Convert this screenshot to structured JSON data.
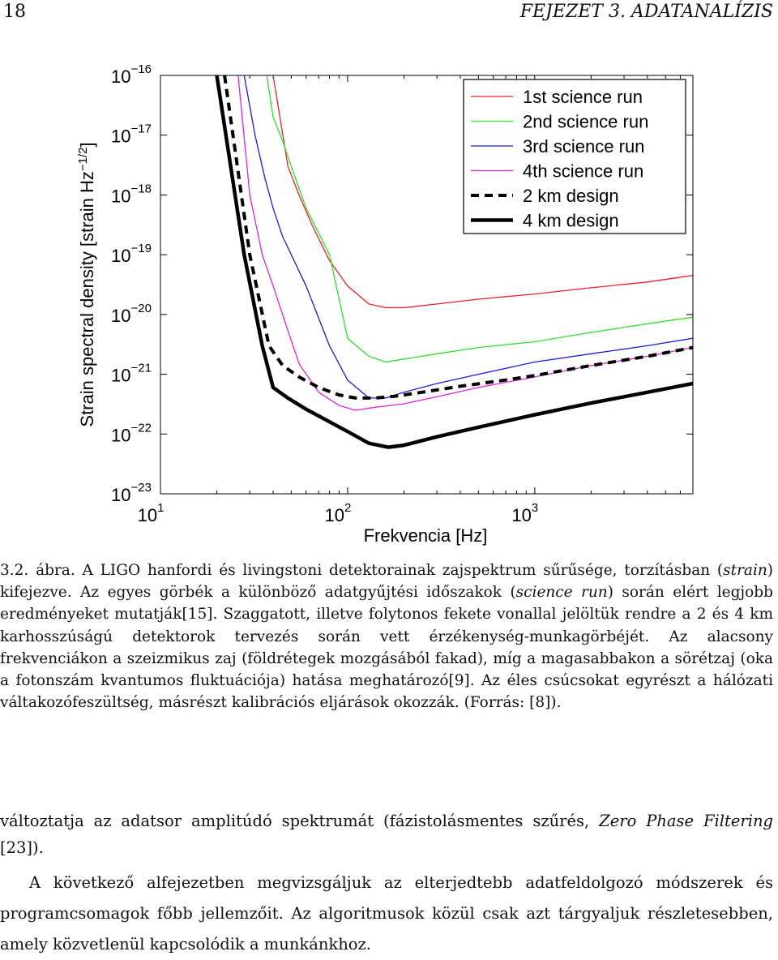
{
  "header": {
    "page_number": "18",
    "chapter": "FEJEZET 3.  ADATANALÍZIS"
  },
  "figure": {
    "ylabel": "Strain spectral density [strain Hz",
    "ylabel_exp": "−1/2",
    "ylabel_end": "]",
    "xlabel": "Frekvencia [Hz]",
    "legend": [
      {
        "label": "1st science run",
        "color": "#e8202a",
        "style": "solid"
      },
      {
        "label": "2nd science run",
        "color": "#2be02b",
        "style": "solid"
      },
      {
        "label": "3rd science run",
        "color": "#1a1adf",
        "style": "solid"
      },
      {
        "label": "4th science run",
        "color": "#e020e0",
        "style": "solid"
      },
      {
        "label": "2 km design",
        "color": "#000000",
        "style": "dashed"
      },
      {
        "label": "4 km design",
        "color": "#000000",
        "style": "solid-thick"
      }
    ]
  },
  "chart_data": {
    "type": "line",
    "xscale": "log",
    "yscale": "log",
    "xlim": [
      10,
      7000
    ],
    "ylim": [
      1e-23,
      1e-16
    ],
    "xticks": [
      {
        "value": 10,
        "base": "10",
        "exp": "1"
      },
      {
        "value": 100,
        "base": "10",
        "exp": "2"
      },
      {
        "value": 1000,
        "base": "10",
        "exp": "3"
      }
    ],
    "yticks": [
      {
        "value": 1e-16,
        "base": "10",
        "exp": "−16"
      },
      {
        "value": 1e-17,
        "base": "10",
        "exp": "−17"
      },
      {
        "value": 1e-18,
        "base": "10",
        "exp": "−18"
      },
      {
        "value": 1e-19,
        "base": "10",
        "exp": "−19"
      },
      {
        "value": 1e-20,
        "base": "10",
        "exp": "−20"
      },
      {
        "value": 1e-21,
        "base": "10",
        "exp": "−21"
      },
      {
        "value": 1e-22,
        "base": "10",
        "exp": "−22"
      },
      {
        "value": 1e-23,
        "base": "10",
        "exp": "−23"
      }
    ],
    "xlabel": "Frekvencia [Hz]",
    "legend_position": "top-right",
    "series": [
      {
        "name": "1st science run",
        "color": "#e8202a",
        "style": "solid",
        "x": [
          40,
          48,
          55,
          65,
          80,
          100,
          130,
          160,
          200,
          300,
          500,
          1000,
          2000,
          4000,
          7000
        ],
        "y": [
          1e-16,
          3e-18,
          1e-18,
          3e-19,
          8e-20,
          3e-20,
          1.5e-20,
          1.3e-20,
          1.3e-20,
          1.5e-20,
          1.8e-20,
          2.2e-20,
          2.8e-20,
          3.5e-20,
          4.5e-20
        ]
      },
      {
        "name": "2nd science run",
        "color": "#2be02b",
        "style": "solid",
        "x": [
          37,
          40,
          45,
          50,
          60,
          80,
          100,
          130,
          160,
          200,
          300,
          500,
          1000,
          2000,
          4000,
          7000
        ],
        "y": [
          1e-16,
          2e-17,
          8e-18,
          3e-18,
          6e-19,
          1e-19,
          4e-21,
          2e-21,
          1.6e-21,
          1.8e-21,
          2.2e-21,
          2.8e-21,
          3.5e-21,
          5e-21,
          7e-21,
          9e-21
        ]
      },
      {
        "name": "3rd science run",
        "color": "#1a1adf",
        "style": "solid",
        "x": [
          28,
          32,
          36,
          40,
          45,
          50,
          60,
          80,
          100,
          130,
          160,
          200,
          300,
          500,
          1000,
          2000,
          4000,
          7000
        ],
        "y": [
          1e-16,
          1e-17,
          2e-18,
          6e-19,
          2e-19,
          1e-19,
          3e-20,
          3e-21,
          8e-22,
          4e-22,
          4e-22,
          5e-22,
          7e-22,
          1e-21,
          1.6e-21,
          2.2e-21,
          3e-21,
          4e-21
        ]
      },
      {
        "name": "4th science run",
        "color": "#e020e0",
        "style": "solid",
        "x": [
          26,
          30,
          35,
          40,
          46,
          55,
          70,
          90,
          110,
          140,
          200,
          300,
          500,
          1000,
          2000,
          4000,
          7000
        ],
        "y": [
          1e-16,
          1e-18,
          1e-19,
          3e-20,
          8e-21,
          1.5e-21,
          5e-22,
          3e-22,
          2.5e-22,
          2.8e-22,
          3.2e-22,
          4.2e-22,
          6e-22,
          9e-22,
          1.4e-21,
          2e-21,
          2.8e-21
        ]
      },
      {
        "name": "2 km design",
        "color": "#000000",
        "style": "dashed",
        "x": [
          22,
          30,
          38,
          45,
          55,
          70,
          90,
          110,
          140,
          180,
          250,
          400,
          700,
          1000,
          2000,
          4000,
          7000
        ],
        "y": [
          1e-16,
          1e-19,
          3e-21,
          1.4e-21,
          9e-22,
          6e-22,
          4.5e-22,
          4e-22,
          4e-22,
          4.3e-22,
          5e-22,
          6.3e-22,
          8e-22,
          9.5e-22,
          1.4e-21,
          2e-21,
          2.8e-21
        ]
      },
      {
        "name": "4 km design",
        "color": "#000000",
        "style": "solid-thick",
        "x": [
          20,
          28,
          35,
          40,
          48,
          60,
          80,
          100,
          130,
          165,
          200,
          300,
          500,
          1000,
          2000,
          4000,
          7000
        ],
        "y": [
          1e-16,
          1e-19,
          3e-21,
          6e-22,
          4e-22,
          2.6e-22,
          1.6e-22,
          1.1e-22,
          7e-23,
          6e-23,
          6.5e-23,
          9e-23,
          1.3e-22,
          2.1e-22,
          3.3e-22,
          5e-22,
          7e-22
        ]
      }
    ]
  },
  "caption": {
    "label": "3.2. ábra.",
    "t1": " A LIGO hanfordi és livingstoni detektorainak zajspektrum sűrűsége, torzításban (",
    "i1": "strain",
    "t2": ") kifejezve. Az egyes görbék a különböző adatgyűjtési időszakok (",
    "i2": "science run",
    "t3": ") során elért legjobb eredményeket mutatják[15]. Szaggatott, illetve folytonos fekete vonallal jelöltük rendre a 2 és 4 km karhosszúságú detektorok tervezés során vett érzékenység-munkagörbéjét. Az alacsony frekvenciákon a szeizmikus zaj (földrétegek mozgásából fakad), míg a magasabbakon a sörétzaj (oka a fotonszám kvantumos fluktuációja) hatása meghatározó[9]. Az éles csúcsokat egyrészt a hálózati váltakozófeszültség, másrészt kalibrációs eljárások okozzák. (Forrás: [8])."
  },
  "body": {
    "p1_t1": "változtatja az adatsor amplitúdó spektrumát (fázistolásmentes szűrés, ",
    "p1_i": "Zero Phase Filtering",
    "p1_t2": " [23]).",
    "p2": "A következő alfejezetben megvizsgáljuk az elterjedtebb adatfeldolgozó módszerek és programcsomagok főbb jellemzőit. Az algoritmusok közül csak azt tárgyaljuk részletesebben, amely közvetlenül kapcsolódik a munkánkhoz."
  }
}
